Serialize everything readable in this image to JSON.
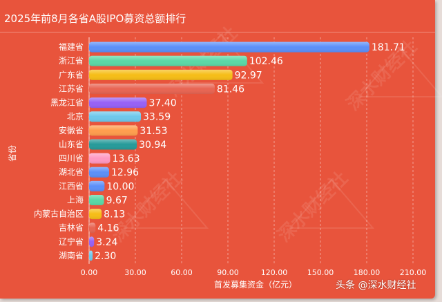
{
  "chart_data": {
    "type": "bar",
    "orientation": "horizontal",
    "title": "2025年前8月各省A股IPO募资总额排行",
    "xlabel": "首发募集资金（亿元）",
    "ylabel": "省份",
    "xlim": [
      0,
      210
    ],
    "xticks": [
      "0.00",
      "30.00",
      "60.00",
      "90.00",
      "120.00",
      "150.00",
      "180.00",
      "210.00"
    ],
    "grid": true,
    "categories": [
      "福建省",
      "浙江省",
      "广东省",
      "江苏省",
      "黑龙江省",
      "北京",
      "安徽省",
      "山东省",
      "四川省",
      "湖北省",
      "江西省",
      "上海",
      "内蒙古自治区",
      "吉林省",
      "辽宁省",
      "湖南省"
    ],
    "values": [
      181.71,
      102.46,
      92.97,
      81.46,
      37.4,
      33.59,
      31.53,
      30.94,
      13.63,
      12.96,
      10.0,
      9.67,
      8.13,
      4.16,
      3.24,
      2.3
    ],
    "value_labels": [
      "181.71",
      "102.46",
      "92.97",
      "81.46",
      "37.40",
      "33.59",
      "31.53",
      "30.94",
      "13.63",
      "12.96",
      "10.00",
      "9.67",
      "8.13",
      "4.16",
      "3.24",
      "2.30"
    ],
    "colors": [
      "#5b8ff9",
      "#5ad8a6",
      "#f6bd16",
      "#e86452",
      "#9661f5",
      "#6dc8ec",
      "#ff9d4d",
      "#269a99",
      "#ff99c3",
      "#5b8ff9",
      "#5b8ff9",
      "#5ad8a6",
      "#f6bd16",
      "#e86452",
      "#9661f5",
      "#6dc8ec"
    ]
  },
  "watermark": "深水财经社",
  "credit": "头条 @深水财经社"
}
